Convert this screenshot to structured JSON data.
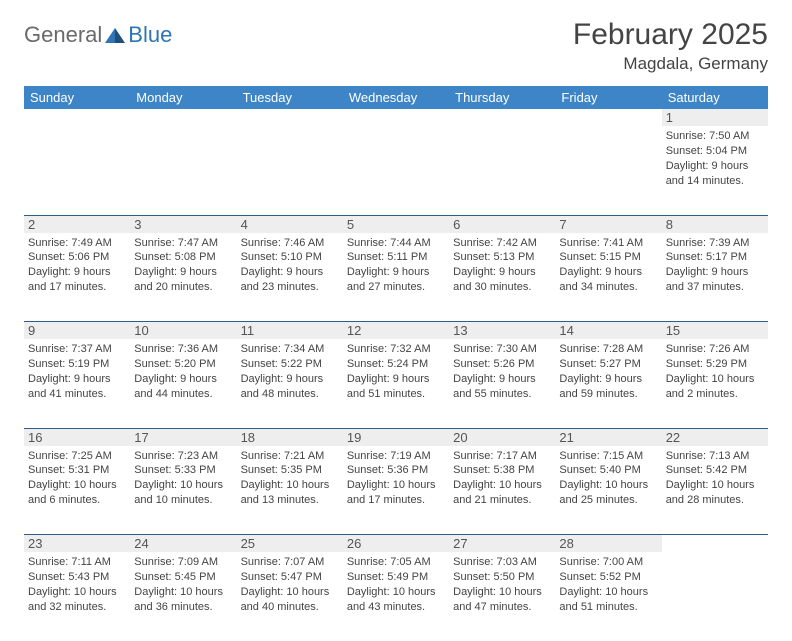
{
  "logo": {
    "text1": "General",
    "text2": "Blue"
  },
  "title": "February 2025",
  "location": "Magdala, Germany",
  "colors": {
    "header_bg": "#3d85c6",
    "header_text": "#ffffff",
    "daynum_bg": "#eeeeee",
    "row_border": "#2e5d8a",
    "body_text": "#444444",
    "logo_gray": "#6a6a6a",
    "logo_blue": "#2e75b6"
  },
  "weekdays": [
    "Sunday",
    "Monday",
    "Tuesday",
    "Wednesday",
    "Thursday",
    "Friday",
    "Saturday"
  ],
  "weeks": [
    [
      null,
      null,
      null,
      null,
      null,
      null,
      {
        "n": "1",
        "sr": "Sunrise: 7:50 AM",
        "ss": "Sunset: 5:04 PM",
        "d1": "Daylight: 9 hours",
        "d2": "and 14 minutes."
      }
    ],
    [
      {
        "n": "2",
        "sr": "Sunrise: 7:49 AM",
        "ss": "Sunset: 5:06 PM",
        "d1": "Daylight: 9 hours",
        "d2": "and 17 minutes."
      },
      {
        "n": "3",
        "sr": "Sunrise: 7:47 AM",
        "ss": "Sunset: 5:08 PM",
        "d1": "Daylight: 9 hours",
        "d2": "and 20 minutes."
      },
      {
        "n": "4",
        "sr": "Sunrise: 7:46 AM",
        "ss": "Sunset: 5:10 PM",
        "d1": "Daylight: 9 hours",
        "d2": "and 23 minutes."
      },
      {
        "n": "5",
        "sr": "Sunrise: 7:44 AM",
        "ss": "Sunset: 5:11 PM",
        "d1": "Daylight: 9 hours",
        "d2": "and 27 minutes."
      },
      {
        "n": "6",
        "sr": "Sunrise: 7:42 AM",
        "ss": "Sunset: 5:13 PM",
        "d1": "Daylight: 9 hours",
        "d2": "and 30 minutes."
      },
      {
        "n": "7",
        "sr": "Sunrise: 7:41 AM",
        "ss": "Sunset: 5:15 PM",
        "d1": "Daylight: 9 hours",
        "d2": "and 34 minutes."
      },
      {
        "n": "8",
        "sr": "Sunrise: 7:39 AM",
        "ss": "Sunset: 5:17 PM",
        "d1": "Daylight: 9 hours",
        "d2": "and 37 minutes."
      }
    ],
    [
      {
        "n": "9",
        "sr": "Sunrise: 7:37 AM",
        "ss": "Sunset: 5:19 PM",
        "d1": "Daylight: 9 hours",
        "d2": "and 41 minutes."
      },
      {
        "n": "10",
        "sr": "Sunrise: 7:36 AM",
        "ss": "Sunset: 5:20 PM",
        "d1": "Daylight: 9 hours",
        "d2": "and 44 minutes."
      },
      {
        "n": "11",
        "sr": "Sunrise: 7:34 AM",
        "ss": "Sunset: 5:22 PM",
        "d1": "Daylight: 9 hours",
        "d2": "and 48 minutes."
      },
      {
        "n": "12",
        "sr": "Sunrise: 7:32 AM",
        "ss": "Sunset: 5:24 PM",
        "d1": "Daylight: 9 hours",
        "d2": "and 51 minutes."
      },
      {
        "n": "13",
        "sr": "Sunrise: 7:30 AM",
        "ss": "Sunset: 5:26 PM",
        "d1": "Daylight: 9 hours",
        "d2": "and 55 minutes."
      },
      {
        "n": "14",
        "sr": "Sunrise: 7:28 AM",
        "ss": "Sunset: 5:27 PM",
        "d1": "Daylight: 9 hours",
        "d2": "and 59 minutes."
      },
      {
        "n": "15",
        "sr": "Sunrise: 7:26 AM",
        "ss": "Sunset: 5:29 PM",
        "d1": "Daylight: 10 hours",
        "d2": "and 2 minutes."
      }
    ],
    [
      {
        "n": "16",
        "sr": "Sunrise: 7:25 AM",
        "ss": "Sunset: 5:31 PM",
        "d1": "Daylight: 10 hours",
        "d2": "and 6 minutes."
      },
      {
        "n": "17",
        "sr": "Sunrise: 7:23 AM",
        "ss": "Sunset: 5:33 PM",
        "d1": "Daylight: 10 hours",
        "d2": "and 10 minutes."
      },
      {
        "n": "18",
        "sr": "Sunrise: 7:21 AM",
        "ss": "Sunset: 5:35 PM",
        "d1": "Daylight: 10 hours",
        "d2": "and 13 minutes."
      },
      {
        "n": "19",
        "sr": "Sunrise: 7:19 AM",
        "ss": "Sunset: 5:36 PM",
        "d1": "Daylight: 10 hours",
        "d2": "and 17 minutes."
      },
      {
        "n": "20",
        "sr": "Sunrise: 7:17 AM",
        "ss": "Sunset: 5:38 PM",
        "d1": "Daylight: 10 hours",
        "d2": "and 21 minutes."
      },
      {
        "n": "21",
        "sr": "Sunrise: 7:15 AM",
        "ss": "Sunset: 5:40 PM",
        "d1": "Daylight: 10 hours",
        "d2": "and 25 minutes."
      },
      {
        "n": "22",
        "sr": "Sunrise: 7:13 AM",
        "ss": "Sunset: 5:42 PM",
        "d1": "Daylight: 10 hours",
        "d2": "and 28 minutes."
      }
    ],
    [
      {
        "n": "23",
        "sr": "Sunrise: 7:11 AM",
        "ss": "Sunset: 5:43 PM",
        "d1": "Daylight: 10 hours",
        "d2": "and 32 minutes."
      },
      {
        "n": "24",
        "sr": "Sunrise: 7:09 AM",
        "ss": "Sunset: 5:45 PM",
        "d1": "Daylight: 10 hours",
        "d2": "and 36 minutes."
      },
      {
        "n": "25",
        "sr": "Sunrise: 7:07 AM",
        "ss": "Sunset: 5:47 PM",
        "d1": "Daylight: 10 hours",
        "d2": "and 40 minutes."
      },
      {
        "n": "26",
        "sr": "Sunrise: 7:05 AM",
        "ss": "Sunset: 5:49 PM",
        "d1": "Daylight: 10 hours",
        "d2": "and 43 minutes."
      },
      {
        "n": "27",
        "sr": "Sunrise: 7:03 AM",
        "ss": "Sunset: 5:50 PM",
        "d1": "Daylight: 10 hours",
        "d2": "and 47 minutes."
      },
      {
        "n": "28",
        "sr": "Sunrise: 7:00 AM",
        "ss": "Sunset: 5:52 PM",
        "d1": "Daylight: 10 hours",
        "d2": "and 51 minutes."
      },
      null
    ]
  ]
}
